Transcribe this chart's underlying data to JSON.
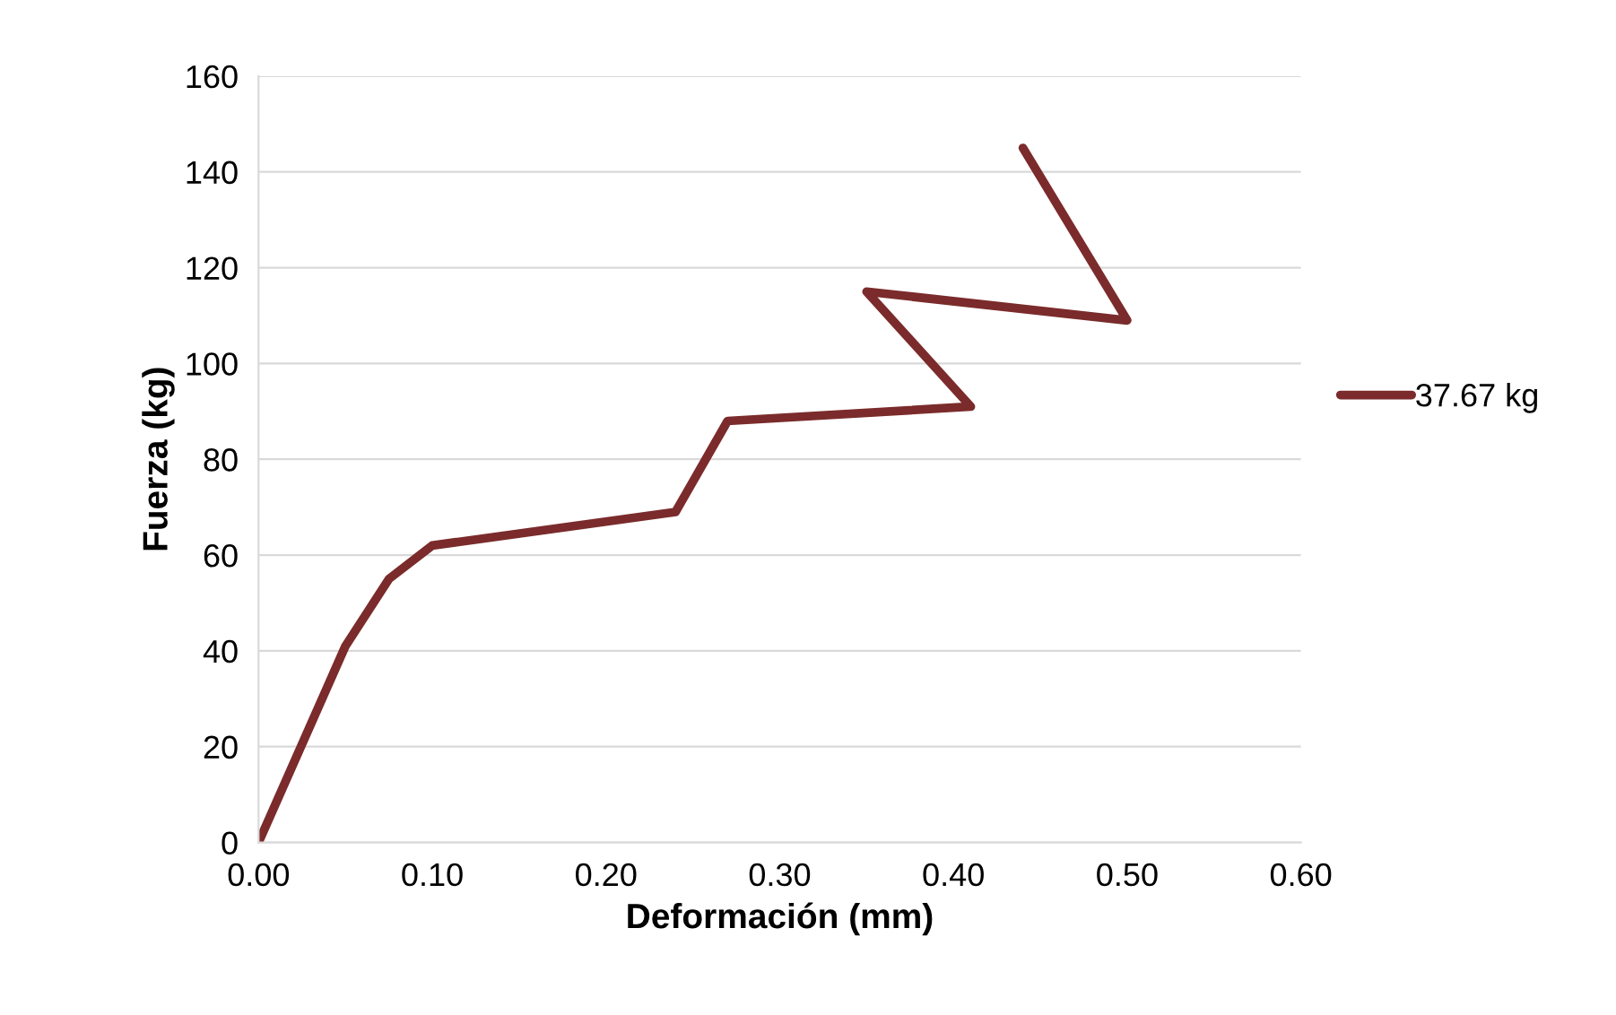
{
  "chart_data": {
    "type": "line",
    "xlabel": "Deformación (mm)",
    "ylabel": "Fuerza (kg)",
    "xlim": [
      0,
      0.6
    ],
    "ylim": [
      0,
      160
    ],
    "xticks": [
      {
        "value": 0,
        "label": "0.00"
      },
      {
        "value": 0.1,
        "label": "0.10"
      },
      {
        "value": 0.2,
        "label": "0.20"
      },
      {
        "value": 0.3,
        "label": "0.30"
      },
      {
        "value": 0.4,
        "label": "0.40"
      },
      {
        "value": 0.5,
        "label": "0.50"
      },
      {
        "value": 0.6,
        "label": "0.60"
      }
    ],
    "yticks": [
      0,
      20,
      40,
      60,
      80,
      100,
      120,
      140,
      160
    ],
    "grid": "y",
    "legend": "right",
    "marker": "none",
    "line_style": "solid",
    "series": [
      {
        "name": "37.67 kg",
        "color": "#7b2b2b",
        "x": [
          0,
          0.05,
          0.075,
          0.1,
          0.24,
          0.27,
          0.41,
          0.35,
          0.5,
          0.44
        ],
        "values": [
          0,
          41,
          55,
          62,
          69,
          88,
          91,
          115,
          109,
          145
        ]
      }
    ]
  }
}
